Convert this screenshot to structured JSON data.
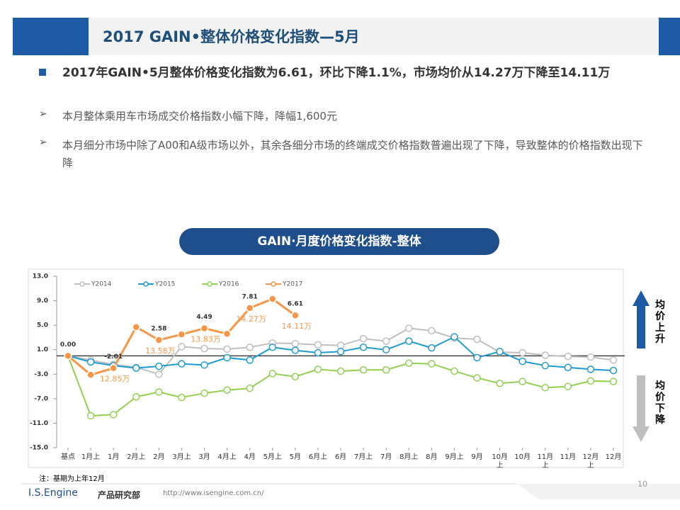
{
  "header": {
    "title": "2017 GAIN•整体价格变化指数—5月"
  },
  "bullets": {
    "main": "2017年GAIN•5月整体价格变化指数为6.61，环比下降1.1%，市场均价从14.27万下降至14.11万",
    "subs": [
      "本月整体乘用车市场成交价格指数小幅下降，降幅1,600元",
      "本月细分市场中除了A00和A级市场以外，其余各细分市场的终端成交价格指数普遍出现了下降，导致整体的价格指数出现下降"
    ]
  },
  "chart_data": {
    "type": "line",
    "title": "GAIN·月度价格变化指数-整体",
    "categories": [
      "基点",
      "1月上",
      "1月",
      "2月上",
      "2月",
      "3月上",
      "3月",
      "4月上",
      "4月",
      "5月上",
      "5月",
      "6月上",
      "6月",
      "7月上",
      "7月",
      "8月上",
      "8月",
      "9月上",
      "9月",
      "10月上",
      "10月",
      "11月上",
      "11月",
      "12月上",
      "12月"
    ],
    "series": [
      {
        "name": "Y2014",
        "color": "#bfbfbf",
        "values": [
          0,
          -0.7,
          -1.4,
          -1.9,
          -3.0,
          1.5,
          1.2,
          1.1,
          1.4,
          2.1,
          2.0,
          1.8,
          1.7,
          2.8,
          2.4,
          4.5,
          4.1,
          2.9,
          2.7,
          0.6,
          0.5,
          0.1,
          -0.1,
          -0.2,
          -0.7
        ]
      },
      {
        "name": "Y2015",
        "color": "#1f9bd1",
        "values": [
          0,
          -1.0,
          -1.6,
          -2.0,
          -1.7,
          -1.3,
          -1.5,
          -0.3,
          -0.7,
          1.4,
          0.9,
          0.5,
          0.7,
          1.4,
          1.0,
          2.4,
          1.3,
          3.1,
          -0.3,
          0.7,
          -0.9,
          -1.6,
          -1.9,
          -2.2,
          -2.4
        ]
      },
      {
        "name": "Y2016",
        "color": "#92d050",
        "values": [
          0,
          -9.8,
          -9.6,
          -6.7,
          -5.9,
          -6.8,
          -6.1,
          -5.6,
          -5.3,
          -2.9,
          -3.4,
          -2.2,
          -2.5,
          -2.3,
          -2.3,
          -1.2,
          -1.3,
          -2.5,
          -3.6,
          -4.5,
          -4.2,
          -5.2,
          -5.0,
          -4.1,
          -4.2
        ]
      },
      {
        "name": "Y2017",
        "color": "#f79646",
        "values": [
          0,
          -3.1,
          -2.01,
          4.7,
          2.58,
          3.5,
          4.49,
          3.6,
          7.81,
          9.3,
          6.61,
          null,
          null,
          null,
          null,
          null,
          null,
          null,
          null,
          null,
          null,
          null,
          null,
          null,
          null
        ],
        "value_labels": [
          "0.00",
          null,
          "-2.01",
          null,
          "2.58",
          null,
          "4.49",
          null,
          "7.81",
          null,
          "6.61",
          null,
          null,
          null,
          null,
          null,
          null,
          null,
          null,
          null,
          null,
          null,
          null,
          null,
          null
        ]
      }
    ],
    "annotations": [
      {
        "text": "12.85万",
        "x": "1月"
      },
      {
        "text": "13.58万",
        "x": "2月"
      },
      {
        "text": "13.83万",
        "x": "3月"
      },
      {
        "text": "14.27万",
        "x": "4月"
      },
      {
        "text": "14.11万",
        "x": "5月"
      }
    ],
    "ylim": [
      -15,
      13
    ],
    "yticks": [
      {
        "value": -15,
        "label": "-15.0"
      },
      {
        "value": -11,
        "label": "-11.0"
      },
      {
        "value": -7,
        "label": "-7.0"
      },
      {
        "value": -3,
        "label": "-3.0"
      },
      {
        "value": 1,
        "label": "1.0"
      },
      {
        "value": 5,
        "label": "5.0"
      },
      {
        "value": 9,
        "label": "9.0"
      },
      {
        "value": 13,
        "label": "13.0"
      }
    ],
    "legend": "top",
    "grid": false
  },
  "side": {
    "up": "均价上升",
    "down": "均价下降"
  },
  "note": "注：基期为上年12月",
  "footer": {
    "brand": "I.S.Engine",
    "dept": "产品研究部",
    "url": "http://www.isengine.com.cn/",
    "page": "10"
  }
}
